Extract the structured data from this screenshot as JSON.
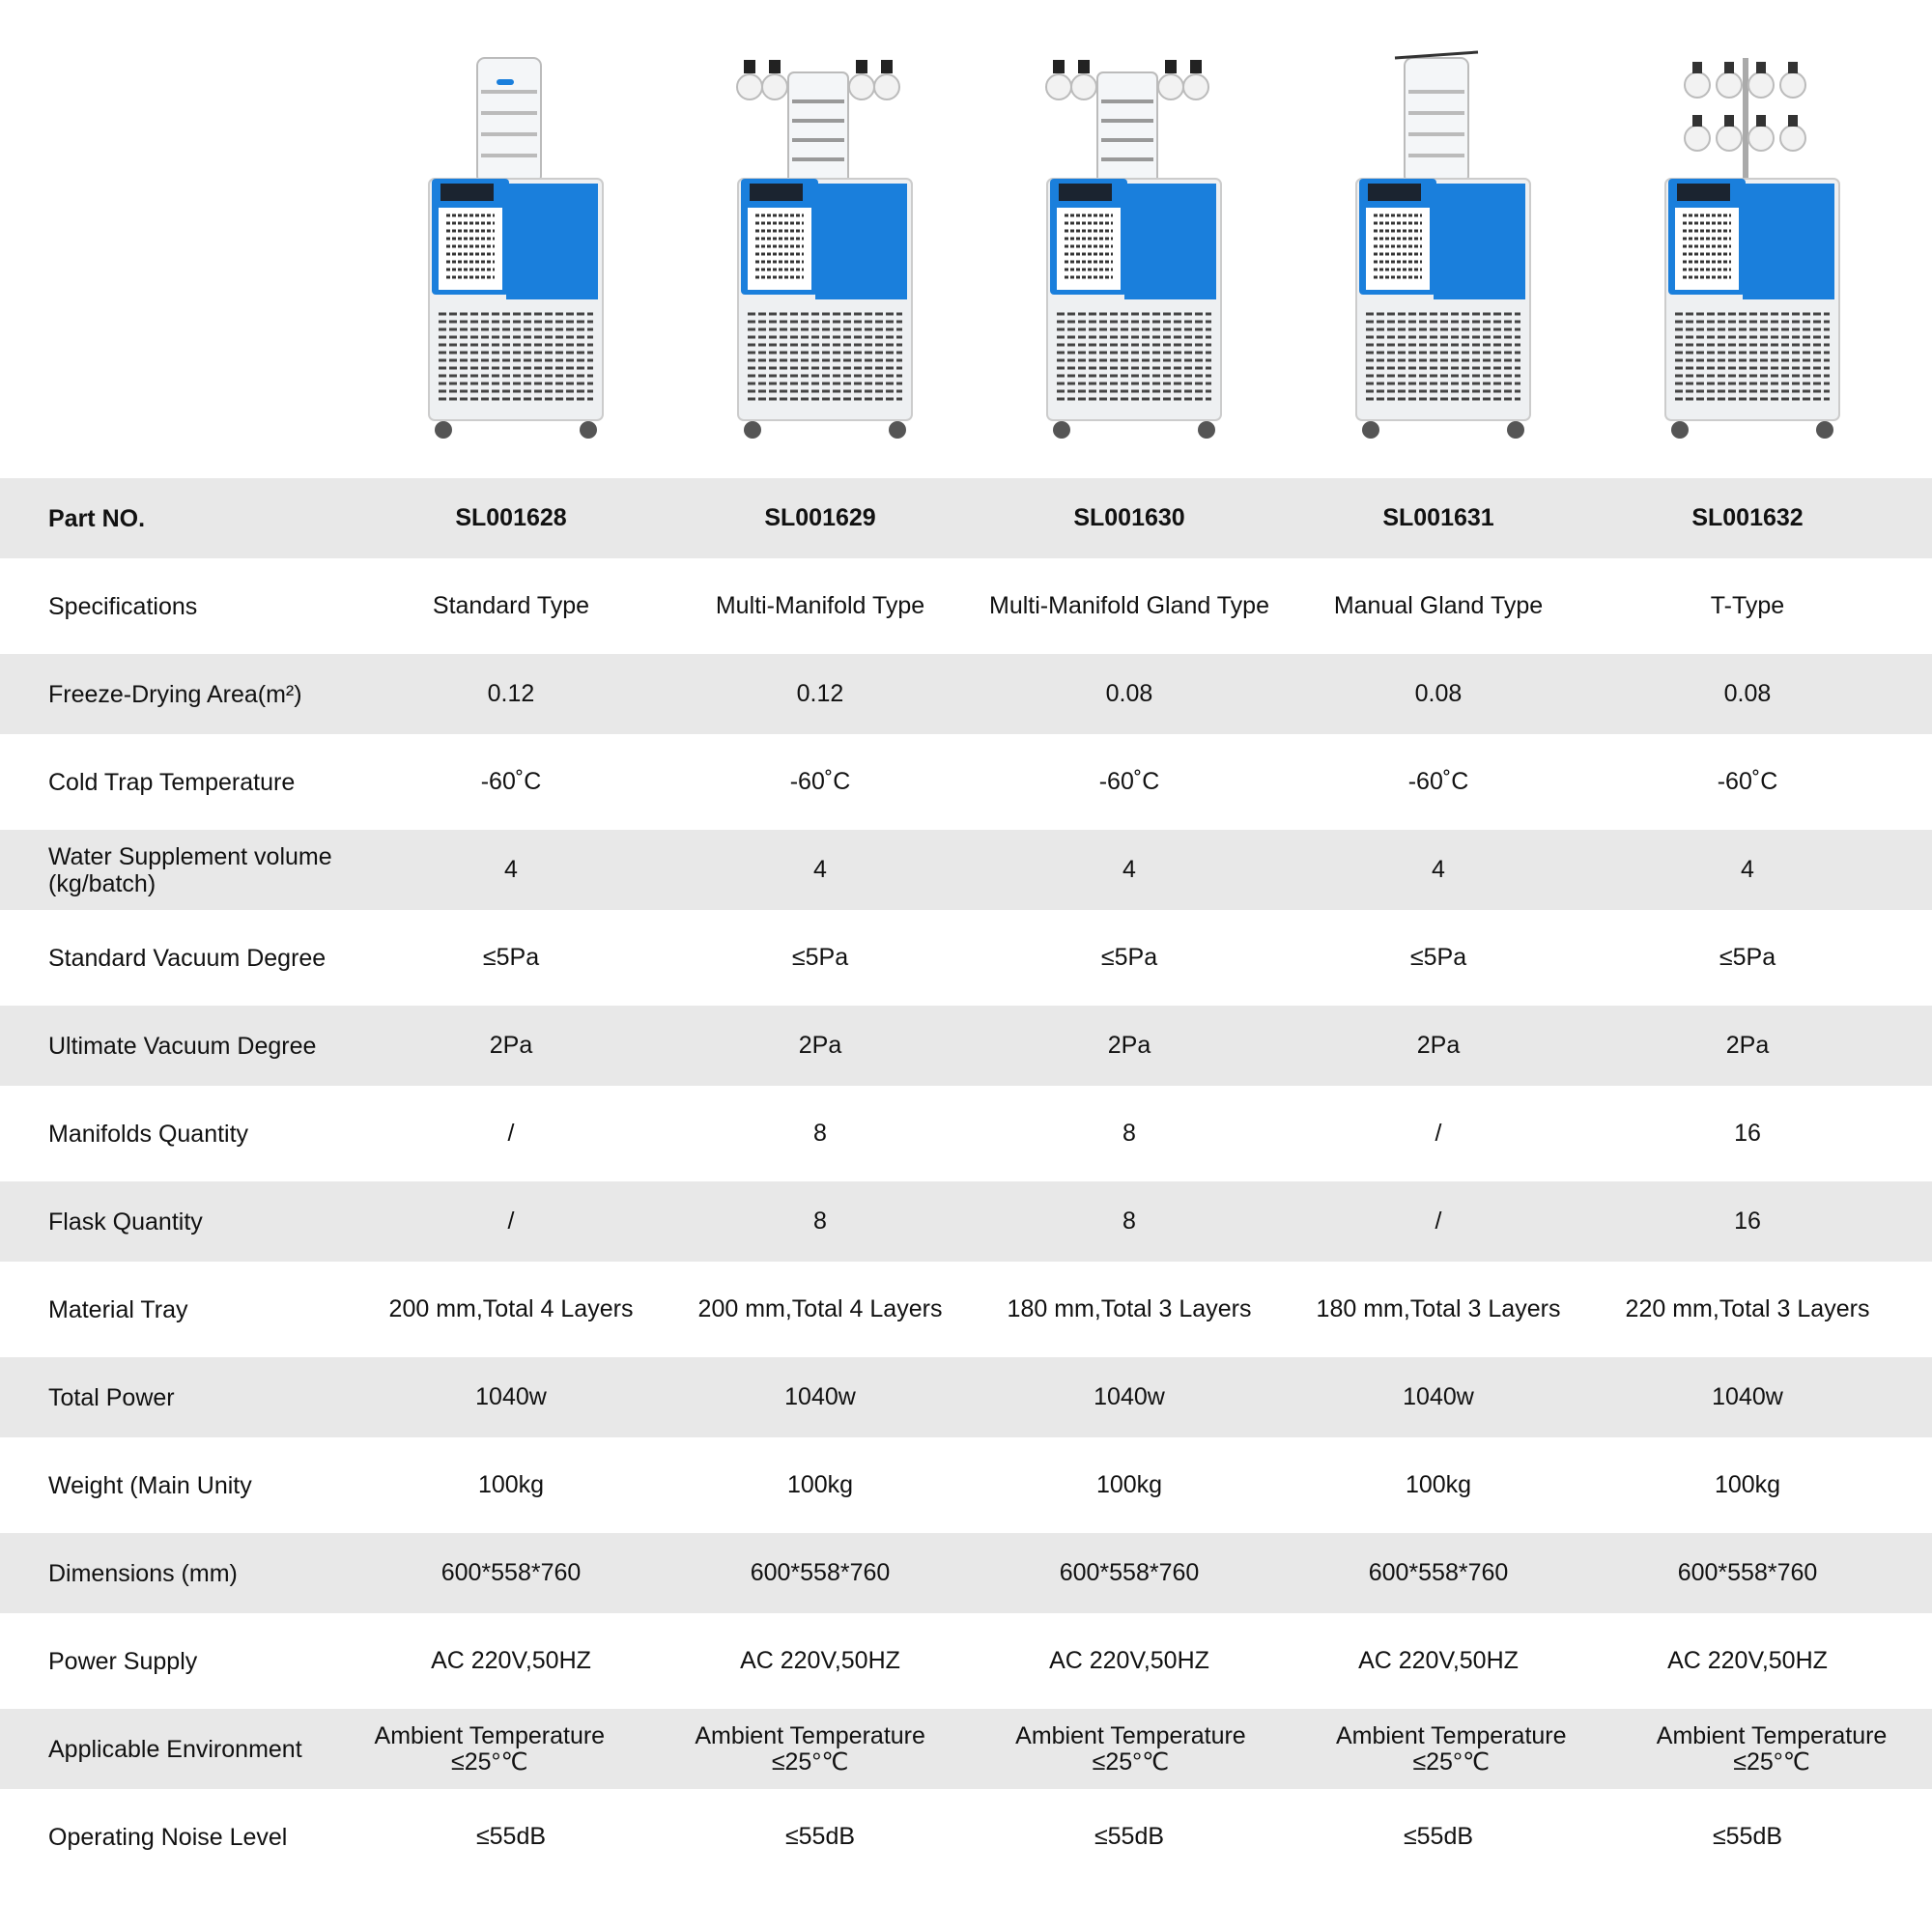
{
  "colors": {
    "stripe": "#e8e8e8",
    "machine_blue": "#1a7fdc",
    "machine_body": "#eef0f2"
  },
  "products": [
    {
      "image": "standard-type-freeze-dryer",
      "top": "chamber"
    },
    {
      "image": "multi-manifold-type-freeze-dryer",
      "top": "manifold"
    },
    {
      "image": "multi-manifold-gland-type-freeze-dryer",
      "top": "gland-manifold"
    },
    {
      "image": "manual-gland-type-freeze-dryer",
      "top": "gland"
    },
    {
      "image": "t-type-freeze-dryer",
      "top": "t-rack"
    }
  ],
  "header": {
    "label": "Part NO.",
    "values": [
      "SL001628",
      "SL001629",
      "SL001630",
      "SL001631",
      "SL001632"
    ]
  },
  "rows": [
    {
      "label": "Specifications",
      "values": [
        "Standard Type",
        "Multi-Manifold Type",
        "Multi-Manifold Gland Type",
        "Manual Gland Type",
        "T-Type"
      ]
    },
    {
      "label": "Freeze-Drying Area(m²)",
      "values": [
        "0.12",
        "0.12",
        "0.08",
        "0.08",
        "0.08"
      ]
    },
    {
      "label": "Cold Trap Temperature",
      "values": [
        "-60˚C",
        "-60˚C",
        "-60˚C",
        "-60˚C",
        "-60˚C"
      ]
    },
    {
      "label": "Water Supplement volume (kg/batch)",
      "values": [
        "4",
        "4",
        "4",
        "4",
        "4"
      ]
    },
    {
      "label": "Standard Vacuum Degree",
      "values": [
        "≤5Pa",
        "≤5Pa",
        "≤5Pa",
        "≤5Pa",
        "≤5Pa"
      ]
    },
    {
      "label": "Ultimate Vacuum Degree",
      "values": [
        "2Pa",
        "2Pa",
        "2Pa",
        "2Pa",
        "2Pa"
      ]
    },
    {
      "label": "Manifolds Quantity",
      "values": [
        "/",
        "8",
        "8",
        "/",
        "16"
      ]
    },
    {
      "label": "Flask Quantity",
      "values": [
        "/",
        "8",
        "8",
        "/",
        "16"
      ]
    },
    {
      "label": "Material Tray",
      "values": [
        "200 mm,Total 4 Layers",
        "200 mm,Total 4 Layers",
        "180 mm,Total 3 Layers",
        "180 mm,Total 3 Layers",
        "220 mm,Total 3 Layers"
      ]
    },
    {
      "label": "Total Power",
      "values": [
        "1040w",
        "1040w",
        "1040w",
        "1040w",
        "1040w"
      ]
    },
    {
      "label": "Weight (Main Unity",
      "values": [
        "100kg",
        "100kg",
        "100kg",
        "100kg",
        "100kg"
      ]
    },
    {
      "label": "Dimensions (mm)",
      "values": [
        "600*558*760",
        "600*558*760",
        "600*558*760",
        "600*558*760",
        "600*558*760"
      ]
    },
    {
      "label": "Power Supply",
      "values": [
        "AC 220V,50HZ",
        "AC 220V,50HZ",
        "AC 220V,50HZ",
        "AC 220V,50HZ",
        "AC 220V,50HZ"
      ]
    },
    {
      "label": "Applicable Environment",
      "values": [
        "Ambient Temperature ≤25°℃",
        "Ambient Temperature ≤25°℃",
        "Ambient Temperature ≤25°℃",
        "Ambient Temperature ≤25°℃",
        "Ambient Temperature ≤25°℃"
      ]
    },
    {
      "label": "Operating Noise Level",
      "values": [
        "≤55dB",
        "≤55dB",
        "≤55dB",
        "≤55dB",
        "≤55dB"
      ]
    }
  ]
}
